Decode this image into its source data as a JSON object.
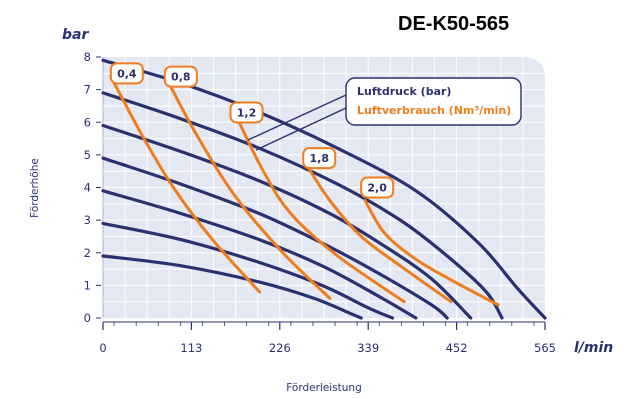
{
  "chart_data": {
    "type": "line",
    "title": "DE-K50-565",
    "y_unit": "bar",
    "x_unit": "l/min",
    "ylabel": "Förderhöhe",
    "xlabel": "Förderleistung",
    "xlim": [
      0,
      565
    ],
    "ylim": [
      0,
      8
    ],
    "x_ticks": [
      "0",
      "113",
      "226",
      "339",
      "452",
      "565"
    ],
    "y_ticks": [
      "0",
      "1",
      "2",
      "3",
      "4",
      "5",
      "6",
      "7",
      "8"
    ],
    "grid": true,
    "legend": {
      "position": "top-right",
      "entries": [
        {
          "label": "Luftdruck (bar)",
          "color": "#2a3170"
        },
        {
          "label": "Luftverbrauch (Nm³/min)",
          "color": "#ef7d1e"
        }
      ]
    },
    "colors": {
      "pressure": "#2a3170",
      "consumption": "#ef7d1e",
      "plot_bg": "#e3e8f2",
      "grid": "#ffffff"
    },
    "pressure_series": [
      {
        "name": "8 bar",
        "points": [
          [
            0,
            7.9
          ],
          [
            100,
            7.2
          ],
          [
            200,
            6.3
          ],
          [
            300,
            5.2
          ],
          [
            400,
            3.9
          ],
          [
            480,
            2.3
          ],
          [
            530,
            0.9
          ],
          [
            565,
            0
          ]
        ]
      },
      {
        "name": "7 bar",
        "points": [
          [
            0,
            6.9
          ],
          [
            100,
            6.1
          ],
          [
            200,
            5.2
          ],
          [
            300,
            4.1
          ],
          [
            380,
            3.0
          ],
          [
            440,
            1.9
          ],
          [
            490,
            0.8
          ],
          [
            510,
            0
          ]
        ]
      },
      {
        "name": "6 bar",
        "points": [
          [
            0,
            5.9
          ],
          [
            100,
            5.1
          ],
          [
            200,
            4.2
          ],
          [
            290,
            3.2
          ],
          [
            360,
            2.2
          ],
          [
            420,
            1.2
          ],
          [
            470,
            0
          ]
        ]
      },
      {
        "name": "5 bar",
        "points": [
          [
            0,
            4.9
          ],
          [
            100,
            4.1
          ],
          [
            200,
            3.2
          ],
          [
            280,
            2.3
          ],
          [
            350,
            1.4
          ],
          [
            420,
            0.4
          ],
          [
            440,
            0
          ]
        ]
      },
      {
        "name": "4 bar",
        "points": [
          [
            0,
            3.9
          ],
          [
            100,
            3.2
          ],
          [
            200,
            2.4
          ],
          [
            280,
            1.6
          ],
          [
            350,
            0.7
          ],
          [
            400,
            0
          ]
        ]
      },
      {
        "name": "3 bar",
        "points": [
          [
            0,
            2.9
          ],
          [
            100,
            2.4
          ],
          [
            200,
            1.7
          ],
          [
            280,
            1.0
          ],
          [
            340,
            0.3
          ],
          [
            370,
            0
          ]
        ]
      },
      {
        "name": "2 bar",
        "points": [
          [
            0,
            1.9
          ],
          [
            100,
            1.6
          ],
          [
            200,
            1.1
          ],
          [
            270,
            0.6
          ],
          [
            320,
            0.1
          ],
          [
            330,
            0
          ]
        ]
      }
    ],
    "consumption_series": [
      {
        "name": "0,4",
        "label": "0,4",
        "points": [
          [
            10,
            7.4
          ],
          [
            50,
            5.6
          ],
          [
            90,
            4.0
          ],
          [
            140,
            2.4
          ],
          [
            200,
            0.8
          ]
        ]
      },
      {
        "name": "0,8",
        "label": "0,8",
        "points": [
          [
            80,
            7.4
          ],
          [
            120,
            5.6
          ],
          [
            170,
            3.7
          ],
          [
            230,
            2.0
          ],
          [
            290,
            0.6
          ]
        ]
      },
      {
        "name": "1,2",
        "label": "1,2",
        "points": [
          [
            170,
            6.2
          ],
          [
            205,
            4.5
          ],
          [
            240,
            3.2
          ],
          [
            300,
            1.9
          ],
          [
            385,
            0.5
          ]
        ]
      },
      {
        "name": "1,8",
        "label": "1,8",
        "points": [
          [
            260,
            4.7
          ],
          [
            290,
            3.6
          ],
          [
            330,
            2.5
          ],
          [
            380,
            1.6
          ],
          [
            445,
            0.5
          ]
        ]
      },
      {
        "name": "2,0",
        "label": "2,0",
        "points": [
          [
            335,
            3.6
          ],
          [
            360,
            2.6
          ],
          [
            400,
            1.8
          ],
          [
            450,
            1.1
          ],
          [
            505,
            0.4
          ]
        ]
      }
    ],
    "flow_labels": [
      {
        "label": "0,4",
        "x": 10,
        "y": 7.5
      },
      {
        "label": "0,8",
        "x": 79,
        "y": 7.4
      },
      {
        "label": "1,2",
        "x": 163,
        "y": 6.3
      },
      {
        "label": "1,8",
        "x": 256,
        "y": 4.9
      },
      {
        "label": "2,0",
        "x": 330,
        "y": 4.0
      }
    ]
  }
}
